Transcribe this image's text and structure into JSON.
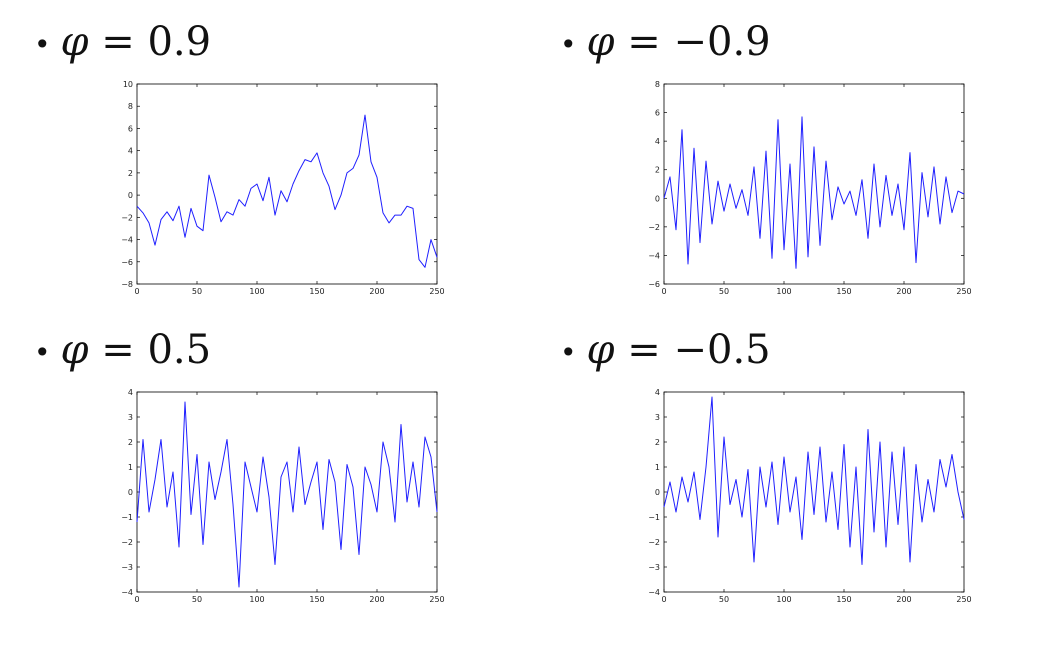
{
  "headings": [
    {
      "symbol": "φ",
      "eq": "=",
      "value": "0.9"
    },
    {
      "symbol": "φ",
      "eq": "=",
      "value": "−0.9"
    },
    {
      "symbol": "φ",
      "eq": "=",
      "value": "0.5"
    },
    {
      "symbol": "φ",
      "eq": "=",
      "value": "−0.5"
    }
  ],
  "bullet": "•",
  "line_color": "#1f1fff",
  "chart_data": [
    {
      "type": "line",
      "title": "",
      "xlim": [
        0,
        250
      ],
      "ylim": [
        -8,
        10
      ],
      "xticks": [
        0,
        50,
        100,
        150,
        200,
        250
      ],
      "yticks": [
        -8,
        -6,
        -4,
        -2,
        0,
        2,
        4,
        6,
        8,
        10
      ],
      "x": [
        0,
        5,
        10,
        15,
        20,
        25,
        30,
        35,
        40,
        45,
        50,
        55,
        60,
        65,
        70,
        75,
        80,
        85,
        90,
        95,
        100,
        105,
        110,
        115,
        120,
        125,
        130,
        135,
        140,
        145,
        150,
        155,
        160,
        165,
        170,
        175,
        180,
        185,
        190,
        195,
        200,
        205,
        210,
        215,
        220,
        225,
        230,
        235,
        240,
        245,
        250
      ],
      "values": [
        -1.0,
        -1.6,
        -2.5,
        -4.5,
        -2.2,
        -1.5,
        -2.3,
        -1.0,
        -3.8,
        -1.2,
        -2.8,
        -3.2,
        1.8,
        -0.2,
        -2.4,
        -1.5,
        -1.8,
        -0.4,
        -1.0,
        0.6,
        1.0,
        -0.5,
        1.6,
        -1.8,
        0.4,
        -0.6,
        1.0,
        2.2,
        3.2,
        3.0,
        3.8,
        2.0,
        0.8,
        -1.3,
        0.0,
        2.0,
        2.4,
        3.6,
        7.2,
        3.0,
        1.6,
        -1.6,
        -2.5,
        -1.8,
        -1.8,
        -1.0,
        -1.2,
        -5.8,
        -6.5,
        -4.0,
        -5.6
      ]
    },
    {
      "type": "line",
      "title": "",
      "xlim": [
        0,
        250
      ],
      "ylim": [
        -6,
        8
      ],
      "xticks": [
        0,
        50,
        100,
        150,
        200,
        250
      ],
      "yticks": [
        -6,
        -4,
        -2,
        0,
        2,
        4,
        6,
        8
      ],
      "x": [
        0,
        5,
        10,
        15,
        20,
        25,
        30,
        35,
        40,
        45,
        50,
        55,
        60,
        65,
        70,
        75,
        80,
        85,
        90,
        95,
        100,
        105,
        110,
        115,
        120,
        125,
        130,
        135,
        140,
        145,
        150,
        155,
        160,
        165,
        170,
        175,
        180,
        185,
        190,
        195,
        200,
        205,
        210,
        215,
        220,
        225,
        230,
        235,
        240,
        245,
        250
      ],
      "values": [
        0.0,
        1.5,
        -2.2,
        4.8,
        -4.6,
        3.5,
        -3.1,
        2.6,
        -1.8,
        1.2,
        -0.9,
        1.0,
        -0.7,
        0.6,
        -1.2,
        2.2,
        -2.8,
        3.3,
        -4.2,
        5.5,
        -3.6,
        2.4,
        -4.9,
        5.7,
        -4.1,
        3.6,
        -3.3,
        2.6,
        -1.5,
        0.8,
        -0.4,
        0.5,
        -1.2,
        1.3,
        -2.8,
        2.4,
        -2.0,
        1.6,
        -1.2,
        1.0,
        -2.2,
        3.2,
        -4.5,
        1.8,
        -1.3,
        2.2,
        -1.8,
        1.5,
        -1.0,
        0.5,
        0.3
      ]
    },
    {
      "type": "line",
      "title": "",
      "xlim": [
        0,
        250
      ],
      "ylim": [
        -4,
        4
      ],
      "xticks": [
        0,
        50,
        100,
        150,
        200,
        250
      ],
      "yticks": [
        -4,
        -3,
        -2,
        -1,
        0,
        1,
        2,
        3,
        4
      ],
      "x": [
        0,
        5,
        10,
        15,
        20,
        25,
        30,
        35,
        40,
        45,
        50,
        55,
        60,
        65,
        70,
        75,
        80,
        85,
        90,
        95,
        100,
        105,
        110,
        115,
        120,
        125,
        130,
        135,
        140,
        145,
        150,
        155,
        160,
        165,
        170,
        175,
        180,
        185,
        190,
        195,
        200,
        205,
        210,
        215,
        220,
        225,
        230,
        235,
        240,
        245,
        250
      ],
      "values": [
        -1.2,
        2.1,
        -0.8,
        0.5,
        2.1,
        -0.6,
        0.8,
        -2.2,
        3.6,
        -0.9,
        1.5,
        -2.1,
        1.2,
        -0.3,
        0.8,
        2.1,
        -0.5,
        -3.8,
        1.2,
        0.2,
        -0.8,
        1.4,
        -0.2,
        -2.9,
        0.6,
        1.2,
        -0.8,
        1.8,
        -0.5,
        0.4,
        1.2,
        -1.5,
        1.3,
        0.4,
        -2.3,
        1.1,
        0.2,
        -2.5,
        1.0,
        0.3,
        -0.8,
        2.0,
        1.0,
        -1.2,
        2.7,
        -0.4,
        1.2,
        -0.6,
        2.2,
        1.4,
        -0.8
      ]
    },
    {
      "type": "line",
      "title": "",
      "xlim": [
        0,
        250
      ],
      "ylim": [
        -4,
        4
      ],
      "xticks": [
        0,
        50,
        100,
        150,
        200,
        250
      ],
      "yticks": [
        -4,
        -3,
        -2,
        -1,
        0,
        1,
        2,
        3,
        4
      ],
      "x": [
        0,
        5,
        10,
        15,
        20,
        25,
        30,
        35,
        40,
        45,
        50,
        55,
        60,
        65,
        70,
        75,
        80,
        85,
        90,
        95,
        100,
        105,
        110,
        115,
        120,
        125,
        130,
        135,
        140,
        145,
        150,
        155,
        160,
        165,
        170,
        175,
        180,
        185,
        190,
        195,
        200,
        205,
        210,
        215,
        220,
        225,
        230,
        235,
        240,
        245,
        250
      ],
      "values": [
        -0.6,
        0.4,
        -0.8,
        0.6,
        -0.4,
        0.8,
        -1.1,
        1.0,
        3.8,
        -1.8,
        2.2,
        -0.5,
        0.5,
        -1.0,
        0.9,
        -2.8,
        1.0,
        -0.6,
        1.2,
        -1.3,
        1.4,
        -0.8,
        0.6,
        -1.9,
        1.6,
        -0.9,
        1.8,
        -1.2,
        0.8,
        -1.5,
        1.9,
        -2.2,
        1.0,
        -2.9,
        2.5,
        -1.6,
        2.0,
        -2.2,
        1.6,
        -1.3,
        1.8,
        -2.8,
        1.1,
        -1.2,
        0.5,
        -0.8,
        1.3,
        0.2,
        1.5,
        0.0,
        -1.1
      ]
    }
  ]
}
